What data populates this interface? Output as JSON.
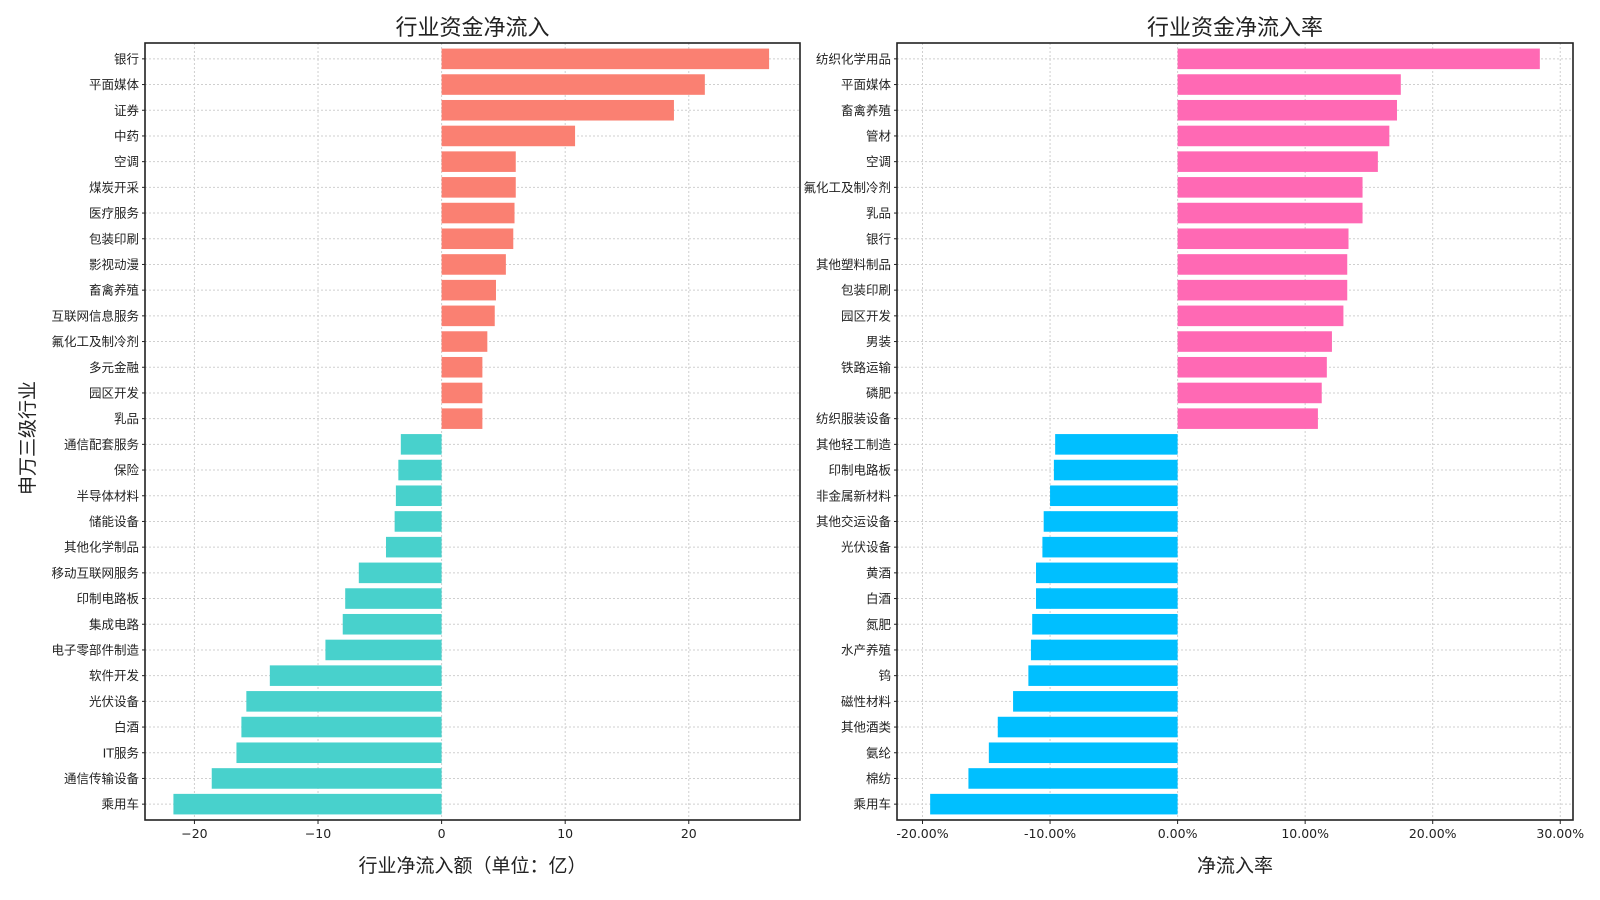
{
  "y_axis_label": "申万三级行业",
  "chart_data": [
    {
      "type": "bar",
      "orientation": "horizontal",
      "title": "行业资金净流入",
      "xlabel": "行业净流入额（单位：亿）",
      "ylabel": "申万三级行业",
      "xlim": [
        -24,
        29
      ],
      "xticks": [
        -20,
        -10,
        0,
        10,
        20
      ],
      "xtick_labels": [
        "−20",
        "−10",
        "0",
        "10",
        "20"
      ],
      "grid": true,
      "positive_color": "#fa8072",
      "negative_color": "#48d1cc",
      "categories": [
        "银行",
        "平面媒体",
        "证券",
        "中药",
        "空调",
        "煤炭开采",
        "医疗服务",
        "包装印刷",
        "影视动漫",
        "畜禽养殖",
        "互联网信息服务",
        "氟化工及制冷剂",
        "多元金融",
        "园区开发",
        "乳品",
        "通信配套服务",
        "保险",
        "半导体材料",
        "储能设备",
        "其他化学制品",
        "移动互联网服务",
        "印制电路板",
        "集成电路",
        "电子零部件制造",
        "软件开发",
        "光伏设备",
        "白酒",
        "IT服务",
        "通信传输设备",
        "乘用车"
      ],
      "values": [
        26.5,
        21.3,
        18.8,
        10.8,
        6.0,
        6.0,
        5.9,
        5.8,
        5.2,
        4.4,
        4.3,
        3.7,
        3.3,
        3.3,
        3.3,
        -3.3,
        -3.5,
        -3.7,
        -3.8,
        -4.5,
        -6.7,
        -7.8,
        -8.0,
        -9.4,
        -13.9,
        -15.8,
        -16.2,
        -16.6,
        -18.6,
        -21.7
      ]
    },
    {
      "type": "bar",
      "orientation": "horizontal",
      "title": "行业资金净流入率",
      "xlabel": "净流入率",
      "ylabel": "",
      "xlim": [
        -22,
        31
      ],
      "xticks": [
        -20,
        -10,
        0,
        10,
        20,
        30
      ],
      "xtick_labels": [
        "-20.00%",
        "-10.00%",
        "0.00%",
        "10.00%",
        "20.00%",
        "30.00%"
      ],
      "grid": true,
      "positive_color": "#ff69b4",
      "negative_color": "#00bfff",
      "categories": [
        "纺织化学用品",
        "平面媒体",
        "畜禽养殖",
        "管材",
        "空调",
        "氟化工及制冷剂",
        "乳品",
        "银行",
        "其他塑料制品",
        "包装印刷",
        "园区开发",
        "男装",
        "铁路运输",
        "磷肥",
        "纺织服装设备",
        "其他轻工制造",
        "印制电路板",
        "非金属新材料",
        "其他交运设备",
        "光伏设备",
        "黄酒",
        "白酒",
        "氮肥",
        "水产养殖",
        "钨",
        "磁性材料",
        "其他酒类",
        "氨纶",
        "棉纺",
        "乘用车"
      ],
      "values": [
        28.4,
        17.5,
        17.2,
        16.6,
        15.7,
        14.5,
        14.5,
        13.4,
        13.3,
        13.3,
        13.0,
        12.1,
        11.7,
        11.3,
        11.0,
        -9.6,
        -9.7,
        -10.0,
        -10.5,
        -10.6,
        -11.1,
        -11.1,
        -11.4,
        -11.5,
        -11.7,
        -12.9,
        -14.1,
        -14.8,
        -16.4,
        -19.4
      ]
    }
  ]
}
